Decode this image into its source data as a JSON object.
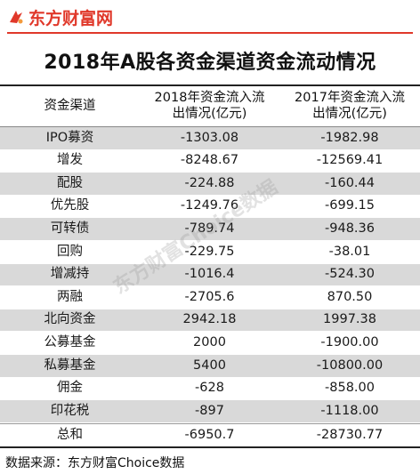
{
  "brand": {
    "logo_text": "东方财富网",
    "accent_color": "#e0382a",
    "logo_icon": "eastmoney-logo-icon"
  },
  "title": "2018年A股各资金渠道资金流动情况",
  "table": {
    "headers": {
      "channel": "资金渠道",
      "y2018_line1": "2018年资金流入流",
      "y2018_line2": "出情况(亿元)",
      "y2017_line1": "2017年资金流入流",
      "y2017_line2": "出情况(亿元)"
    },
    "rows": [
      {
        "channel": "IPO募资",
        "y2018": "-1303.08",
        "y2017": "-1982.98"
      },
      {
        "channel": "增发",
        "y2018": "-8248.67",
        "y2017": "-12569.41"
      },
      {
        "channel": "配股",
        "y2018": "-224.88",
        "y2017": "-160.44"
      },
      {
        "channel": "优先股",
        "y2018": "-1249.76",
        "y2017": "-699.15"
      },
      {
        "channel": "可转债",
        "y2018": "-789.74",
        "y2017": "-948.36"
      },
      {
        "channel": "回购",
        "y2018": "-229.75",
        "y2017": "-38.01"
      },
      {
        "channel": "增减持",
        "y2018": "-1016.4",
        "y2017": "-524.30"
      },
      {
        "channel": "两融",
        "y2018": "-2705.6",
        "y2017": "870.50"
      },
      {
        "channel": "北向资金",
        "y2018": "2942.18",
        "y2017": "1997.38"
      },
      {
        "channel": "公募基金",
        "y2018": "2000",
        "y2017": "-1900.00"
      },
      {
        "channel": "私募基金",
        "y2018": "5400",
        "y2017": "-10800.00"
      },
      {
        "channel": "佣金",
        "y2018": "-628",
        "y2017": "-858.00"
      },
      {
        "channel": "印花税",
        "y2018": "-897",
        "y2017": "-1118.00"
      }
    ],
    "total": {
      "channel": "总和",
      "y2018": "-6950.7",
      "y2017": "-28730.77"
    }
  },
  "source": "数据来源：东方财富Choice数据",
  "watermark": "东方财富Choice数据",
  "colors": {
    "stripe": "#d9d9d9",
    "rule": "#222222"
  }
}
